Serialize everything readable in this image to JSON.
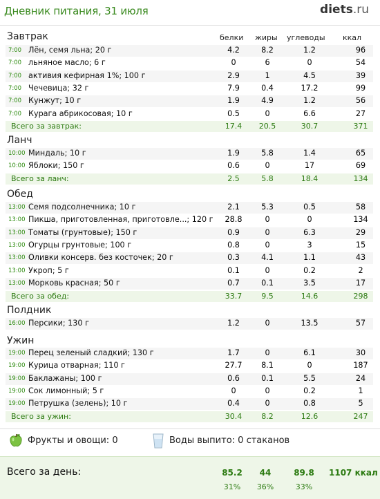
{
  "header": {
    "title": "Дневник питания, 31 июля",
    "logo_main": "diets",
    "logo_tld": ".ru"
  },
  "columns": {
    "protein": "белки",
    "fat": "жиры",
    "carbs": "углеводы",
    "kcal": "ккал"
  },
  "meals": [
    {
      "name": "Завтрак",
      "items": [
        {
          "time": "7:00",
          "food": "Лён, семя льна; 20 г",
          "protein": "4.2",
          "fat": "8.2",
          "carbs": "1.2",
          "kcal": "96"
        },
        {
          "time": "7:00",
          "food": "льняное масло; 6 г",
          "protein": "0",
          "fat": "6",
          "carbs": "0",
          "kcal": "54"
        },
        {
          "time": "7:00",
          "food": "активия кефирная 1%; 100 г",
          "protein": "2.9",
          "fat": "1",
          "carbs": "4.5",
          "kcal": "39"
        },
        {
          "time": "7:00",
          "food": "Чечевица; 32 г",
          "protein": "7.9",
          "fat": "0.4",
          "carbs": "17.2",
          "kcal": "99"
        },
        {
          "time": "7:00",
          "food": "Кунжут; 10 г",
          "protein": "1.9",
          "fat": "4.9",
          "carbs": "1.2",
          "kcal": "56"
        },
        {
          "time": "7:00",
          "food": "Курага абрикосовая; 10 г",
          "protein": "0.5",
          "fat": "0",
          "carbs": "6.6",
          "kcal": "27"
        }
      ],
      "total": {
        "label": "Всего за завтрак:",
        "protein": "17.4",
        "fat": "20.5",
        "carbs": "30.7",
        "kcal": "371"
      }
    },
    {
      "name": "Ланч",
      "items": [
        {
          "time": "10:00",
          "food": "Миндаль; 10 г",
          "protein": "1.9",
          "fat": "5.8",
          "carbs": "1.4",
          "kcal": "65"
        },
        {
          "time": "10:00",
          "food": "Яблоки; 150 г",
          "protein": "0.6",
          "fat": "0",
          "carbs": "17",
          "kcal": "69"
        }
      ],
      "total": {
        "label": "Всего за ланч:",
        "protein": "2.5",
        "fat": "5.8",
        "carbs": "18.4",
        "kcal": "134"
      }
    },
    {
      "name": "Обед",
      "items": [
        {
          "time": "13:00",
          "food": "Семя подсолнечника; 10 г",
          "protein": "2.1",
          "fat": "5.3",
          "carbs": "0.5",
          "kcal": "58"
        },
        {
          "time": "13:00",
          "food": "Пикша, приготовленная, приготовле...; 120 г",
          "protein": "28.8",
          "fat": "0",
          "carbs": "0",
          "kcal": "134"
        },
        {
          "time": "13:00",
          "food": "Томаты (грунтовые); 150 г",
          "protein": "0.9",
          "fat": "0",
          "carbs": "6.3",
          "kcal": "29"
        },
        {
          "time": "13:00",
          "food": "Огурцы грунтовые; 100 г",
          "protein": "0.8",
          "fat": "0",
          "carbs": "3",
          "kcal": "15"
        },
        {
          "time": "13:00",
          "food": "Оливки консерв. без косточек; 20 г",
          "protein": "0.3",
          "fat": "4.1",
          "carbs": "1.1",
          "kcal": "43"
        },
        {
          "time": "13:00",
          "food": "Укроп; 5 г",
          "protein": "0.1",
          "fat": "0",
          "carbs": "0.2",
          "kcal": "2"
        },
        {
          "time": "13:00",
          "food": "Морковь красная; 50 г",
          "protein": "0.7",
          "fat": "0.1",
          "carbs": "3.5",
          "kcal": "17"
        }
      ],
      "total": {
        "label": "Всего за обед:",
        "protein": "33.7",
        "fat": "9.5",
        "carbs": "14.6",
        "kcal": "298"
      }
    },
    {
      "name": "Полдник",
      "items": [
        {
          "time": "16:00",
          "food": "Персики; 130 г",
          "protein": "1.2",
          "fat": "0",
          "carbs": "13.5",
          "kcal": "57"
        }
      ],
      "total": null
    },
    {
      "name": "Ужин",
      "items": [
        {
          "time": "19:00",
          "food": "Перец зеленый сладкий; 130 г",
          "protein": "1.7",
          "fat": "0",
          "carbs": "6.1",
          "kcal": "30"
        },
        {
          "time": "19:00",
          "food": "Курица отварная; 110 г",
          "protein": "27.7",
          "fat": "8.1",
          "carbs": "0",
          "kcal": "187"
        },
        {
          "time": "19:00",
          "food": "Баклажаны; 100 г",
          "protein": "0.6",
          "fat": "0.1",
          "carbs": "5.5",
          "kcal": "24"
        },
        {
          "time": "19:00",
          "food": "Сок лимонный; 5 г",
          "protein": "0",
          "fat": "0",
          "carbs": "0.2",
          "kcal": "1"
        },
        {
          "time": "19:00",
          "food": "Петрушка (зелень); 10 г",
          "protein": "0.4",
          "fat": "0",
          "carbs": "0.8",
          "kcal": "5"
        }
      ],
      "total": {
        "label": "Всего за ужин:",
        "protein": "30.4",
        "fat": "8.2",
        "carbs": "12.6",
        "kcal": "247"
      }
    }
  ],
  "extras": {
    "fruit_icon": "apple-icon",
    "fruit_text": "Фрукты и овощи: 0",
    "water_icon": "glass-icon",
    "water_text": "Воды выпито: 0 стаканов"
  },
  "day_total": {
    "label": "Всего за день:",
    "protein": "85.2",
    "fat": "44",
    "carbs": "89.8",
    "kcal": "1107 ккал",
    "protein_pct": "31%",
    "fat_pct": "36%",
    "carbs_pct": "33%"
  },
  "colors": {
    "accent_green": "#2b7a10",
    "title_green": "#3a8a1f",
    "total_bg": "#eef6e8"
  }
}
